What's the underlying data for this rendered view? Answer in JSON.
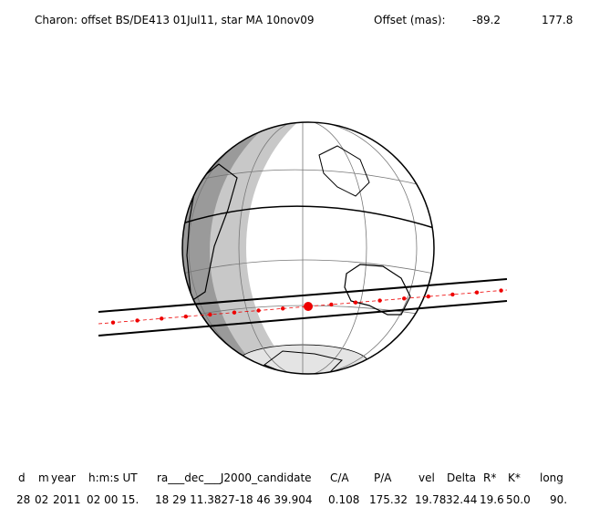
{
  "header": {
    "title": "Charon: offset BS/DE413 01Jul11, star MA 10nov09",
    "offset_label": "Offset (mas):",
    "offset_values": [
      "-89.2",
      "177.8"
    ]
  },
  "table": {
    "columns": [
      "d",
      "m",
      "year",
      "h:m:s UT",
      "ra___dec___J2000_candidate",
      "C/A",
      "P/A",
      "vel",
      "Delta",
      "R*",
      "K*",
      "long"
    ],
    "row": [
      "28",
      "02",
      "2011",
      "02 00 15.",
      "18 29 11.3827",
      "-18 46 39.904",
      "0.108",
      "175.32",
      "19.78",
      "32.44",
      "19.6",
      "50.0",
      "90."
    ]
  }
}
